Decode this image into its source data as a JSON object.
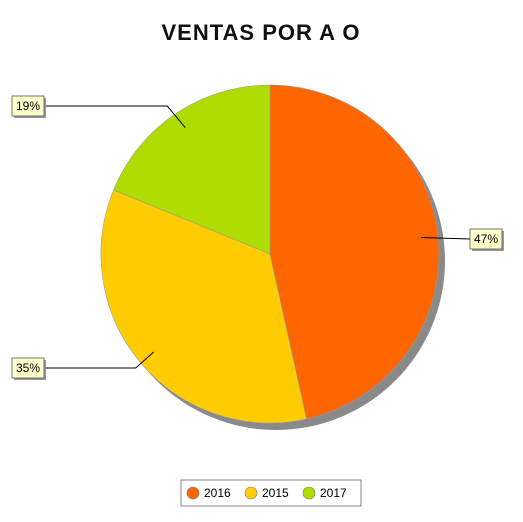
{
  "chart_data": {
    "type": "pie",
    "title": "VENTAS POR A O",
    "categories": [
      "2016",
      "2015",
      "2017"
    ],
    "values": [
      47,
      35,
      19
    ],
    "value_labels": [
      "47%",
      "35%",
      "19%"
    ],
    "colors": [
      "#ff6600",
      "#ffcc00",
      "#b0dd00"
    ],
    "shadow_color": "#8a8a8a",
    "label_box_color": "#ffffcc",
    "legend": {
      "position": "bottom",
      "entries": [
        "2016",
        "2015",
        "2017"
      ]
    }
  }
}
